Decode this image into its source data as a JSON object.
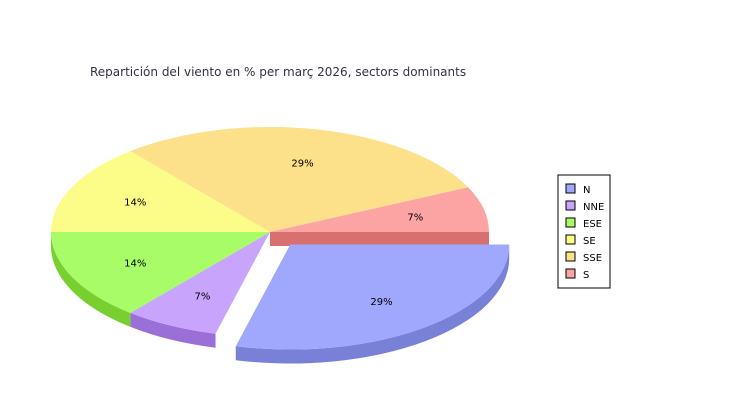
{
  "chart_data": {
    "type": "pie",
    "title": "Repartición del viento en % per març 2026, sectors dominants",
    "legend_position": "right",
    "exploded_slice": "N",
    "slices": [
      {
        "label": "N",
        "value": 29,
        "value_label": "29%",
        "color": "#a0a8fd",
        "side_color": "#7880d8"
      },
      {
        "label": "NNE",
        "value": 7,
        "value_label": "7%",
        "color": "#c8a4fc",
        "side_color": "#9a70d8"
      },
      {
        "label": "ESE",
        "value": 14,
        "value_label": "14%",
        "color": "#a8fc68",
        "side_color": "#78d030"
      },
      {
        "label": "SE",
        "value": 14,
        "value_label": "14%",
        "color": "#fcfc88",
        "side_color": "#d4d460"
      },
      {
        "label": "SSE",
        "value": 29,
        "value_label": "29%",
        "color": "#fce08a",
        "side_color": "#d8b860"
      },
      {
        "label": "S",
        "value": 7,
        "value_label": "7%",
        "color": "#fca4a4",
        "side_color": "#d87070"
      }
    ]
  }
}
